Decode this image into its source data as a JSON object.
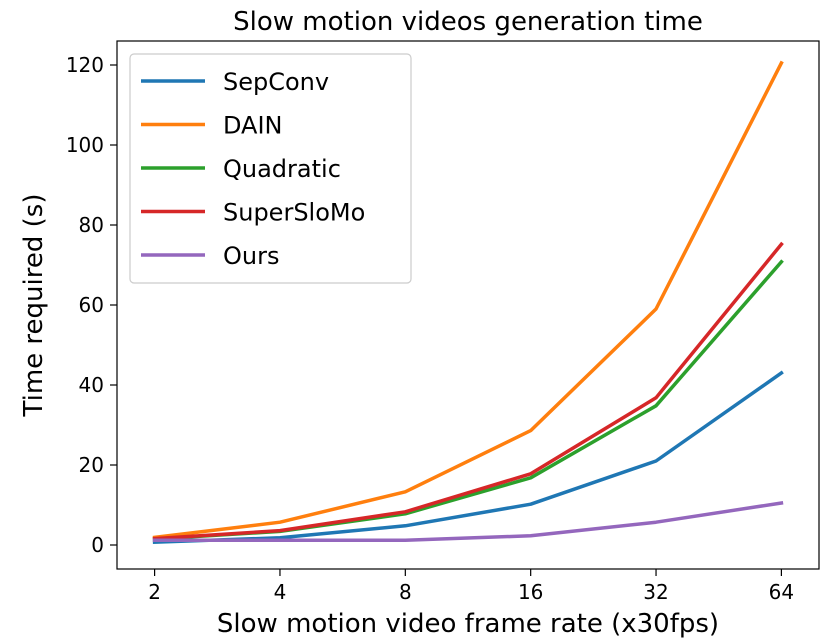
{
  "chart_data": {
    "type": "line",
    "title": "Slow motion videos generation time",
    "xlabel": "Slow motion video frame rate (x30fps)",
    "ylabel": "Time required (s)",
    "x_scale": "log2",
    "x": [
      2,
      4,
      8,
      16,
      32,
      64
    ],
    "x_tick_labels": [
      "2",
      "4",
      "8",
      "16",
      "32",
      "64"
    ],
    "ylim": [
      -6,
      126
    ],
    "y_ticks": [
      0,
      20,
      40,
      60,
      80,
      100,
      120
    ],
    "grid": false,
    "legend_position": "top-left",
    "series": [
      {
        "name": "SepConv",
        "color": "#1f77b4",
        "values": [
          0.7,
          1.8,
          4.8,
          10.2,
          21.0,
          43.0
        ]
      },
      {
        "name": "DAIN",
        "color": "#ff7f0e",
        "values": [
          1.9,
          5.7,
          13.3,
          28.6,
          59.0,
          120.5
        ]
      },
      {
        "name": "Quadratic",
        "color": "#2ca02c",
        "values": [
          1.5,
          3.4,
          7.8,
          16.8,
          34.8,
          70.8
        ]
      },
      {
        "name": "SuperSloMo",
        "color": "#d62728",
        "values": [
          1.6,
          3.6,
          8.3,
          17.8,
          36.8,
          75.2
        ]
      },
      {
        "name": "Ours",
        "color": "#9467bd",
        "values": [
          1.2,
          1.2,
          1.2,
          2.3,
          5.7,
          10.5
        ]
      }
    ]
  }
}
